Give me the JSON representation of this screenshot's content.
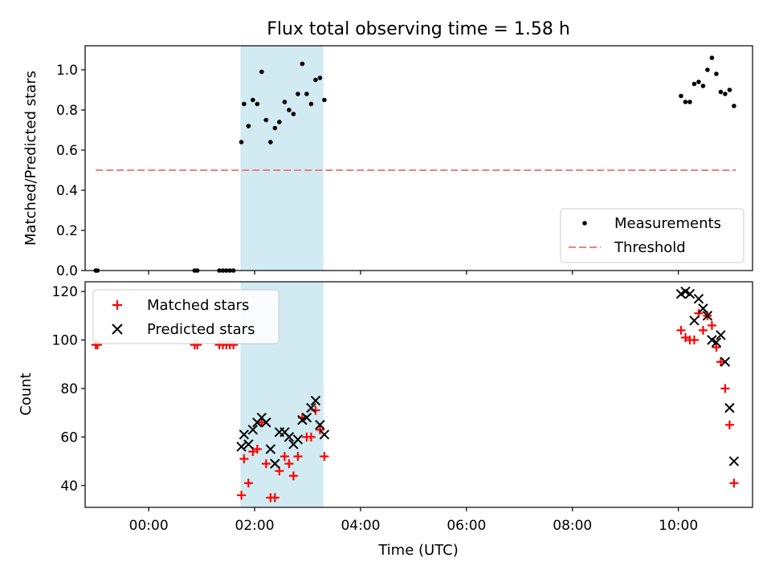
{
  "chart_data": [
    {
      "type": "scatter",
      "title": "Flux total observing time = 1.58 h",
      "xlabel": "",
      "ylabel": "Matched/Predicted stars",
      "xlim": [
        "-01:12",
        "11:24"
      ],
      "ylim": [
        0,
        1.12
      ],
      "yticks": [
        "0.0",
        "0.2",
        "0.4",
        "0.6",
        "0.8",
        "1.0"
      ],
      "highlight_span": [
        "01:44",
        "03:18"
      ],
      "legend": {
        "position": "lower-right",
        "entries": [
          "Measurements",
          "Threshold"
        ]
      },
      "threshold": {
        "name": "Threshold",
        "x": [
          "-01:00",
          "11:05"
        ],
        "y": 0.5,
        "color": "#f08080"
      },
      "series": [
        {
          "name": "Measurements",
          "color": "#000000",
          "points": [
            [
              "-01:00",
              0.0
            ],
            [
              "-00:58",
              0.0
            ],
            [
              "00:52",
              0.0
            ],
            [
              "00:55",
              0.0
            ],
            [
              "01:20",
              0.0
            ],
            [
              "01:24",
              0.0
            ],
            [
              "01:28",
              0.0
            ],
            [
              "01:32",
              0.0
            ],
            [
              "01:36",
              0.0
            ],
            [
              "01:45",
              0.64
            ],
            [
              "01:48",
              0.83
            ],
            [
              "01:53",
              0.72
            ],
            [
              "01:58",
              0.85
            ],
            [
              "02:03",
              0.83
            ],
            [
              "02:08",
              0.99
            ],
            [
              "02:13",
              0.75
            ],
            [
              "02:18",
              0.64
            ],
            [
              "02:23",
              0.71
            ],
            [
              "02:28",
              0.74
            ],
            [
              "02:34",
              0.84
            ],
            [
              "02:39",
              0.8
            ],
            [
              "02:44",
              0.78
            ],
            [
              "02:49",
              0.88
            ],
            [
              "02:54",
              1.03
            ],
            [
              "02:59",
              0.88
            ],
            [
              "03:04",
              0.83
            ],
            [
              "03:09",
              0.95
            ],
            [
              "03:14",
              0.96
            ],
            [
              "03:19",
              0.85
            ],
            [
              "10:03",
              0.87
            ],
            [
              "10:08",
              0.84
            ],
            [
              "10:13",
              0.84
            ],
            [
              "10:18",
              0.93
            ],
            [
              "10:23",
              0.94
            ],
            [
              "10:28",
              0.92
            ],
            [
              "10:33",
              1.0
            ],
            [
              "10:38",
              1.06
            ],
            [
              "10:43",
              0.98
            ],
            [
              "10:48",
              0.89
            ],
            [
              "10:53",
              0.88
            ],
            [
              "10:58",
              0.9
            ],
            [
              "11:03",
              0.82
            ]
          ]
        }
      ]
    },
    {
      "type": "scatter",
      "title": "",
      "xlabel": "Time (UTC)",
      "ylabel": "Count",
      "xlim": [
        "-01:12",
        "11:24"
      ],
      "ylim": [
        31,
        124
      ],
      "yticks": [
        "40",
        "60",
        "80",
        "100",
        "120"
      ],
      "xticks": [
        "00:00",
        "02:00",
        "04:00",
        "06:00",
        "08:00",
        "10:00"
      ],
      "highlight_span": [
        "01:44",
        "03:18"
      ],
      "legend": {
        "position": "upper-left",
        "entries": [
          "Matched stars",
          "Predicted stars"
        ]
      },
      "series": [
        {
          "name": "Matched stars",
          "marker": "+",
          "color": "#ff0000",
          "points": [
            [
              "-01:00",
              98
            ],
            [
              "-00:58",
              98
            ],
            [
              "00:52",
              98
            ],
            [
              "00:55",
              98
            ],
            [
              "01:20",
              98
            ],
            [
              "01:24",
              98
            ],
            [
              "01:28",
              98
            ],
            [
              "01:32",
              98
            ],
            [
              "01:36",
              98
            ],
            [
              "01:45",
              36
            ],
            [
              "01:48",
              51
            ],
            [
              "01:53",
              41
            ],
            [
              "01:58",
              54
            ],
            [
              "02:03",
              55
            ],
            [
              "02:08",
              66
            ],
            [
              "02:13",
              49
            ],
            [
              "02:18",
              35
            ],
            [
              "02:23",
              35
            ],
            [
              "02:28",
              46
            ],
            [
              "02:34",
              52
            ],
            [
              "02:39",
              49
            ],
            [
              "02:44",
              44
            ],
            [
              "02:49",
              52
            ],
            [
              "02:54",
              68
            ],
            [
              "02:59",
              60
            ],
            [
              "03:04",
              60
            ],
            [
              "03:09",
              71
            ],
            [
              "03:14",
              63
            ],
            [
              "03:19",
              52
            ],
            [
              "10:03",
              104
            ],
            [
              "10:08",
              101
            ],
            [
              "10:13",
              100
            ],
            [
              "10:18",
              100
            ],
            [
              "10:23",
              111
            ],
            [
              "10:28",
              104
            ],
            [
              "10:33",
              110
            ],
            [
              "10:38",
              106
            ],
            [
              "10:43",
              97
            ],
            [
              "10:48",
              91
            ],
            [
              "10:53",
              80
            ],
            [
              "10:58",
              65
            ],
            [
              "11:03",
              41
            ]
          ]
        },
        {
          "name": "Predicted stars",
          "marker": "x",
          "color": "#000000",
          "points": [
            [
              "01:45",
              56
            ],
            [
              "01:48",
              61
            ],
            [
              "01:53",
              57
            ],
            [
              "01:58",
              63
            ],
            [
              "02:03",
              66
            ],
            [
              "02:08",
              68
            ],
            [
              "02:13",
              66
            ],
            [
              "02:18",
              55
            ],
            [
              "02:23",
              49
            ],
            [
              "02:28",
              62
            ],
            [
              "02:34",
              62
            ],
            [
              "02:39",
              60
            ],
            [
              "02:44",
              57
            ],
            [
              "02:49",
              59
            ],
            [
              "02:54",
              67
            ],
            [
              "02:59",
              68
            ],
            [
              "03:04",
              72
            ],
            [
              "03:09",
              75
            ],
            [
              "03:14",
              65
            ],
            [
              "03:19",
              61
            ],
            [
              "10:03",
              119
            ],
            [
              "10:08",
              120
            ],
            [
              "10:13",
              119
            ],
            [
              "10:18",
              108
            ],
            [
              "10:23",
              117
            ],
            [
              "10:28",
              113
            ],
            [
              "10:33",
              110
            ],
            [
              "10:38",
              100
            ],
            [
              "10:43",
              99
            ],
            [
              "10:48",
              102
            ],
            [
              "10:53",
              91
            ],
            [
              "10:58",
              72
            ],
            [
              "11:03",
              50
            ]
          ]
        }
      ]
    }
  ]
}
